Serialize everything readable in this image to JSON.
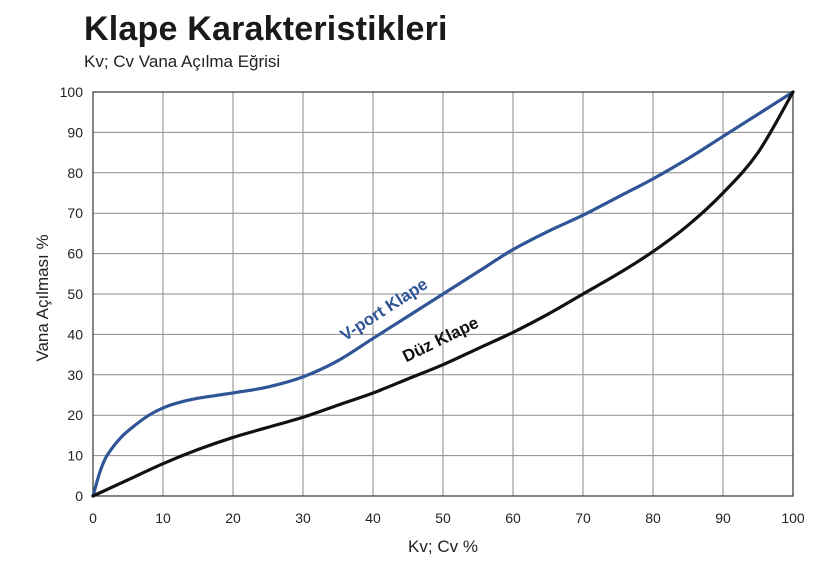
{
  "page": {
    "title": "Klape Karakteristikleri",
    "subtitle": "Kv; Cv Vana Açılma Eğrisi"
  },
  "chart_data": {
    "type": "line",
    "title": "Klape Karakteristikleri",
    "subtitle": "Kv; Cv Vana Açılma Eğrisi",
    "xlabel": "Kv; Cv %",
    "ylabel": "Vana Açılması %",
    "xlim": [
      0,
      100
    ],
    "ylim": [
      0,
      100
    ],
    "xticks": [
      0,
      10,
      20,
      30,
      40,
      50,
      60,
      70,
      80,
      90,
      100
    ],
    "yticks": [
      0,
      10,
      20,
      30,
      40,
      50,
      60,
      70,
      80,
      90,
      100
    ],
    "grid": true,
    "legend": "none",
    "series": [
      {
        "name": "V-port Klape",
        "color": "#2f5597",
        "x": [
          0,
          1,
          2,
          4,
          6,
          8,
          10,
          12,
          15,
          20,
          25,
          30,
          35,
          40,
          45,
          50,
          55,
          60,
          65,
          70,
          75,
          80,
          85,
          90,
          95,
          100
        ],
        "y": [
          0,
          6,
          10,
          14.5,
          17.5,
          20,
          21.8,
          23,
          24.2,
          25.5,
          27,
          29.5,
          33.5,
          39,
          44.5,
          50,
          55.5,
          61,
          65.5,
          69.5,
          74,
          78.5,
          83.5,
          89,
          94.5,
          100
        ]
      },
      {
        "name": "Düz Klape",
        "color": "#111111",
        "x": [
          0,
          5,
          10,
          15,
          20,
          25,
          30,
          35,
          40,
          45,
          50,
          55,
          60,
          65,
          70,
          75,
          80,
          85,
          90,
          95,
          100
        ],
        "y": [
          0,
          4,
          8,
          11.5,
          14.5,
          17,
          19.5,
          22.5,
          25.5,
          29,
          32.5,
          36.5,
          40.5,
          45,
          50,
          55,
          60.5,
          67,
          75,
          85,
          100
        ]
      }
    ],
    "annotations": [
      {
        "text": "V-port Klape",
        "series": "V-port Klape",
        "color": "#2f5597"
      },
      {
        "text": "Düz Klape",
        "series": "Düz Klape",
        "color": "#111111"
      }
    ]
  }
}
